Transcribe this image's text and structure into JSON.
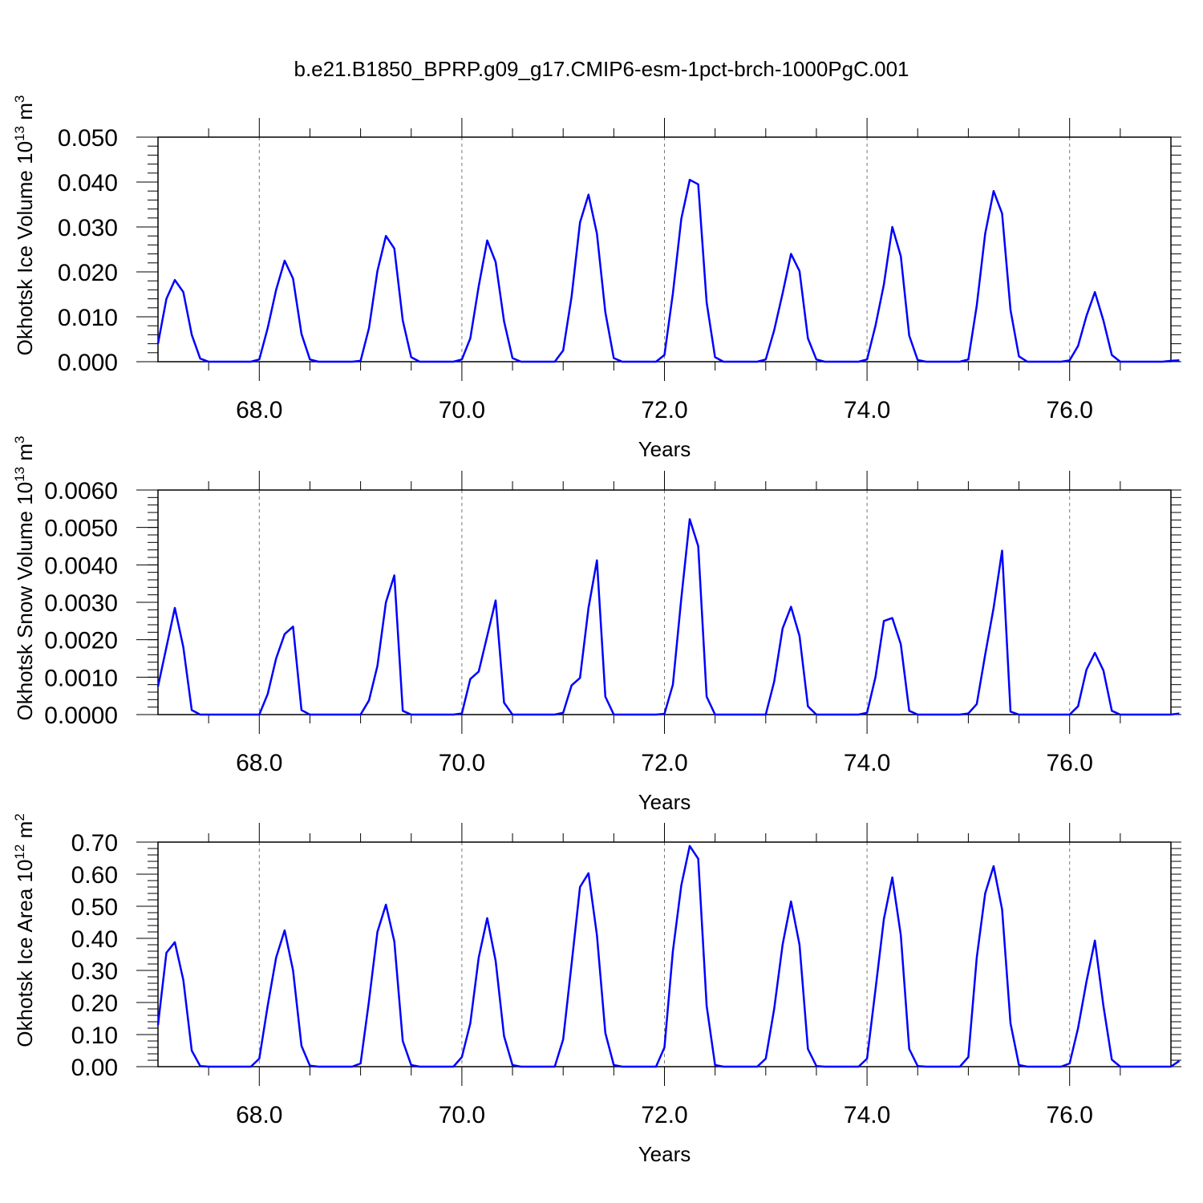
{
  "title": "b.e21.B1850_BPRP.g09_g17.CMIP6-esm-1pct-brch-1000PgC.001",
  "line_color": "#0000ff",
  "chart_data": [
    {
      "type": "line",
      "ylabel": "Okhotsk Ice Volume 10",
      "ylabel_sup": "13",
      "ylabel_unit": " m",
      "ylabel_unit_sup": "3",
      "xlabel": "Years",
      "xlim": [
        67.0,
        77.0
      ],
      "ylim": [
        0.0,
        0.05
      ],
      "yticks": [
        "0.000",
        "0.010",
        "0.020",
        "0.030",
        "0.040",
        "0.050"
      ],
      "ytick_values": [
        0.0,
        0.01,
        0.02,
        0.03,
        0.04,
        0.05
      ],
      "xticks": [
        "68.0",
        "70.0",
        "72.0",
        "74.0",
        "76.0"
      ],
      "xtick_values": [
        68,
        70,
        72,
        74,
        76
      ],
      "grid": "dashed vertical at major x ticks",
      "x_start": 67.0,
      "x_step": 0.08333,
      "values": [
        0.004,
        0.014,
        0.0182,
        0.0155,
        0.006,
        0.0007,
        0.0,
        0.0,
        0.0,
        0.0,
        0.0,
        0.0,
        0.0005,
        0.0075,
        0.016,
        0.0225,
        0.0185,
        0.0062,
        0.0005,
        0.0,
        0.0,
        0.0,
        0.0,
        0.0,
        0.0002,
        0.0075,
        0.0202,
        0.028,
        0.0252,
        0.0092,
        0.001,
        0.0,
        0.0,
        0.0,
        0.0,
        0.0,
        0.0005,
        0.0052,
        0.0168,
        0.027,
        0.0222,
        0.009,
        0.0008,
        0.0,
        0.0,
        0.0,
        0.0,
        0.0,
        0.0025,
        0.0145,
        0.031,
        0.0372,
        0.0285,
        0.011,
        0.0008,
        0.0,
        0.0,
        0.0,
        0.0,
        0.0,
        0.0015,
        0.0152,
        0.0318,
        0.0405,
        0.0395,
        0.0132,
        0.001,
        0.0,
        0.0,
        0.0,
        0.0,
        0.0,
        0.0005,
        0.007,
        0.0152,
        0.024,
        0.0202,
        0.0052,
        0.0005,
        0.0,
        0.0,
        0.0,
        0.0,
        0.0,
        0.0005,
        0.008,
        0.0172,
        0.03,
        0.0235,
        0.0058,
        0.0004,
        0.0,
        0.0,
        0.0,
        0.0,
        0.0,
        0.0005,
        0.0125,
        0.0285,
        0.038,
        0.033,
        0.0115,
        0.0012,
        0.0,
        0.0,
        0.0,
        0.0,
        0.0,
        0.0003,
        0.0035,
        0.0102,
        0.0155,
        0.0092,
        0.0015,
        0.0,
        0.0,
        0.0,
        0.0,
        0.0,
        0.0,
        0.0002,
        0.0003
      ]
    },
    {
      "type": "line",
      "ylabel": "Okhotsk Snow Volume 10",
      "ylabel_sup": "13",
      "ylabel_unit": " m",
      "ylabel_unit_sup": "3",
      "xlabel": "Years",
      "xlim": [
        67.0,
        77.0
      ],
      "ylim": [
        0.0,
        0.006
      ],
      "yticks": [
        "0.0000",
        "0.0010",
        "0.0020",
        "0.0030",
        "0.0040",
        "0.0050",
        "0.0060"
      ],
      "ytick_values": [
        0.0,
        0.001,
        0.002,
        0.003,
        0.004,
        0.005,
        0.006
      ],
      "xticks": [
        "68.0",
        "70.0",
        "72.0",
        "74.0",
        "76.0"
      ],
      "xtick_values": [
        68,
        70,
        72,
        74,
        76
      ],
      "grid": "dashed vertical at major x ticks",
      "x_start": 67.0,
      "x_step": 0.08333,
      "values": [
        0.00075,
        0.0018,
        0.00285,
        0.0018,
        0.00012,
        0.0,
        0.0,
        0.0,
        0.0,
        0.0,
        0.0,
        0.0,
        0.0,
        0.00055,
        0.0015,
        0.00215,
        0.00235,
        0.00012,
        0.0,
        0.0,
        0.0,
        0.0,
        0.0,
        0.0,
        0.0,
        0.00038,
        0.0013,
        0.003,
        0.00372,
        0.0001,
        0.0,
        0.0,
        0.0,
        0.0,
        0.0,
        0.0,
        3e-05,
        0.00095,
        0.00115,
        0.0021,
        0.00305,
        0.00032,
        0.0,
        0.0,
        0.0,
        0.0,
        0.0,
        0.0,
        5e-05,
        0.00078,
        0.00098,
        0.00285,
        0.00412,
        0.00048,
        0.0,
        0.0,
        0.0,
        0.0,
        0.0,
        0.0,
        2e-05,
        0.0008,
        0.0031,
        0.00522,
        0.0045,
        0.00048,
        0.0,
        0.0,
        0.0,
        0.0,
        0.0,
        0.0,
        0.0,
        0.00088,
        0.0023,
        0.00288,
        0.0021,
        0.00022,
        0.0,
        0.0,
        0.0,
        0.0,
        0.0,
        0.0,
        5e-05,
        0.001,
        0.0025,
        0.00258,
        0.00188,
        0.0001,
        0.0,
        0.0,
        0.0,
        0.0,
        0.0,
        0.0,
        3e-05,
        0.00028,
        0.0016,
        0.00285,
        0.00438,
        8e-05,
        0.0,
        0.0,
        0.0,
        0.0,
        0.0,
        0.0,
        0.0,
        0.00022,
        0.0012,
        0.00165,
        0.00118,
        0.0001,
        0.0,
        0.0,
        0.0,
        0.0,
        0.0,
        0.0,
        0.0,
        3e-05
      ]
    },
    {
      "type": "line",
      "ylabel": "Okhotsk Ice Area 10",
      "ylabel_sup": "12",
      "ylabel_unit": " m",
      "ylabel_unit_sup": "2",
      "xlabel": "Years",
      "xlim": [
        67.0,
        77.0
      ],
      "ylim": [
        0.0,
        0.7
      ],
      "yticks": [
        "0.00",
        "0.10",
        "0.20",
        "0.30",
        "0.40",
        "0.50",
        "0.60",
        "0.70"
      ],
      "ytick_values": [
        0.0,
        0.1,
        0.2,
        0.3,
        0.4,
        0.5,
        0.6,
        0.7
      ],
      "xticks": [
        "68.0",
        "70.0",
        "72.0",
        "74.0",
        "76.0"
      ],
      "xtick_values": [
        68,
        70,
        72,
        74,
        76
      ],
      "grid": "dashed vertical at major x ticks",
      "x_start": 67.0,
      "x_step": 0.08333,
      "values": [
        0.13,
        0.355,
        0.388,
        0.27,
        0.05,
        0.002,
        0.0,
        0.0,
        0.0,
        0.0,
        0.0,
        0.0,
        0.025,
        0.19,
        0.34,
        0.425,
        0.3,
        0.065,
        0.003,
        0.0,
        0.0,
        0.0,
        0.0,
        0.0,
        0.01,
        0.205,
        0.42,
        0.505,
        0.39,
        0.08,
        0.005,
        0.0,
        0.0,
        0.0,
        0.0,
        0.0,
        0.03,
        0.135,
        0.34,
        0.463,
        0.33,
        0.095,
        0.005,
        0.0,
        0.0,
        0.0,
        0.0,
        0.0,
        0.085,
        0.32,
        0.56,
        0.603,
        0.41,
        0.105,
        0.005,
        0.0,
        0.0,
        0.0,
        0.0,
        0.0,
        0.06,
        0.36,
        0.565,
        0.688,
        0.648,
        0.19,
        0.005,
        0.0,
        0.0,
        0.0,
        0.0,
        0.0,
        0.025,
        0.18,
        0.38,
        0.515,
        0.38,
        0.055,
        0.002,
        0.0,
        0.0,
        0.0,
        0.0,
        0.0,
        0.025,
        0.24,
        0.46,
        0.59,
        0.41,
        0.055,
        0.002,
        0.0,
        0.0,
        0.0,
        0.0,
        0.0,
        0.03,
        0.34,
        0.54,
        0.625,
        0.49,
        0.135,
        0.005,
        0.0,
        0.0,
        0.0,
        0.0,
        0.0,
        0.01,
        0.12,
        0.265,
        0.393,
        0.19,
        0.022,
        0.0,
        0.0,
        0.0,
        0.0,
        0.0,
        0.0,
        0.0,
        0.018
      ]
    }
  ]
}
